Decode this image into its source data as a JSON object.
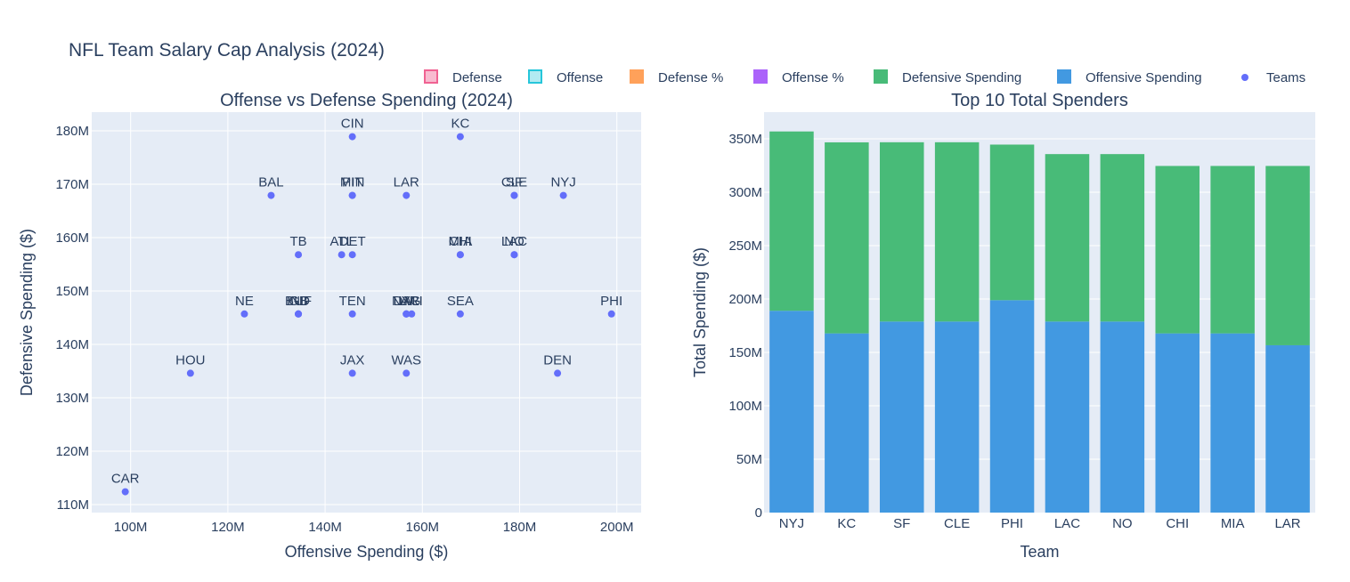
{
  "title": "NFL Team Salary Cap Analysis (2024)",
  "legend": [
    {
      "label": "Defense",
      "kind": "outline-square",
      "color": "#f06292",
      "fill": "#f8bbd0"
    },
    {
      "label": "Offense",
      "kind": "outline-square",
      "color": "#26c6da",
      "fill": "#b2ebf2"
    },
    {
      "label": "Defense %",
      "kind": "square",
      "color": "#ffa15a"
    },
    {
      "label": "Offense %",
      "kind": "square",
      "color": "#ab63fa"
    },
    {
      "label": "Defensive Spending",
      "kind": "square",
      "color": "#48bb78"
    },
    {
      "label": "Offensive Spending",
      "kind": "square",
      "color": "#4299e1"
    },
    {
      "label": "Teams",
      "kind": "dot",
      "color": "#636efa"
    }
  ],
  "colors": {
    "plot_bg": "#e5ecf6",
    "grid": "#ffffff",
    "text": "#2a3f5f",
    "scatter": "#636efa",
    "offense_bar": "#4299e1",
    "defense_bar": "#48bb78"
  },
  "chart_data": [
    {
      "type": "scatter",
      "title": "Offense vs Defense Spending (2024)",
      "xlabel": "Offensive Spending ($)",
      "ylabel": "Defensive Spending ($)",
      "xlim": [
        92,
        205
      ],
      "ylim": [
        108.5,
        183.5
      ],
      "xticks": [
        100,
        120,
        140,
        160,
        180,
        200
      ],
      "yticks": [
        110,
        120,
        130,
        140,
        150,
        160,
        170,
        180
      ],
      "tick_suffix": "M",
      "grid": true,
      "points": [
        {
          "team": "CIN",
          "x": 145.6,
          "y": 178.9
        },
        {
          "team": "KC",
          "x": 167.8,
          "y": 178.9
        },
        {
          "team": "BAL",
          "x": 128.9,
          "y": 167.9
        },
        {
          "team": "MIN",
          "x": 145.6,
          "y": 167.9
        },
        {
          "team": "PIT",
          "x": 145.6,
          "y": 167.9
        },
        {
          "team": "LAR",
          "x": 156.7,
          "y": 167.9
        },
        {
          "team": "CLE",
          "x": 178.9,
          "y": 167.9
        },
        {
          "team": "SF",
          "x": 178.9,
          "y": 167.9
        },
        {
          "team": "NYJ",
          "x": 189.0,
          "y": 167.9
        },
        {
          "team": "TB",
          "x": 134.5,
          "y": 156.8
        },
        {
          "team": "ATL",
          "x": 143.4,
          "y": 156.8
        },
        {
          "team": "DET",
          "x": 145.6,
          "y": 156.8
        },
        {
          "team": "CHI",
          "x": 167.8,
          "y": 156.8
        },
        {
          "team": "MIA",
          "x": 167.8,
          "y": 156.8
        },
        {
          "team": "LAC",
          "x": 178.9,
          "y": 156.8
        },
        {
          "team": "NO",
          "x": 178.9,
          "y": 156.8
        },
        {
          "team": "NE",
          "x": 123.4,
          "y": 145.7
        },
        {
          "team": "BUF",
          "x": 134.5,
          "y": 145.7
        },
        {
          "team": "GB",
          "x": 134.5,
          "y": 145.7
        },
        {
          "team": "IND",
          "x": 134.5,
          "y": 145.7
        },
        {
          "team": "TEN",
          "x": 145.6,
          "y": 145.7
        },
        {
          "team": "DAL",
          "x": 156.7,
          "y": 145.7
        },
        {
          "team": "LV",
          "x": 156.7,
          "y": 145.7
        },
        {
          "team": "NYG",
          "x": 156.7,
          "y": 145.7
        },
        {
          "team": "ARI",
          "x": 157.8,
          "y": 145.7
        },
        {
          "team": "SEA",
          "x": 167.8,
          "y": 145.7
        },
        {
          "team": "PHI",
          "x": 198.9,
          "y": 145.7
        },
        {
          "team": "HOU",
          "x": 112.3,
          "y": 134.6
        },
        {
          "team": "JAX",
          "x": 145.6,
          "y": 134.6
        },
        {
          "team": "WAS",
          "x": 156.7,
          "y": 134.6
        },
        {
          "team": "DEN",
          "x": 187.8,
          "y": 134.6
        },
        {
          "team": "CAR",
          "x": 98.9,
          "y": 112.4
        }
      ]
    },
    {
      "type": "bar",
      "stacked": true,
      "title": "Top 10 Total Spenders",
      "xlabel": "Team",
      "ylabel": "Total Spending ($)",
      "ylim": [
        0,
        375
      ],
      "yticks": [
        0,
        50,
        100,
        150,
        200,
        250,
        300,
        350
      ],
      "tick_suffix": "M",
      "grid": true,
      "categories": [
        "NYJ",
        "KC",
        "SF",
        "CLE",
        "PHI",
        "LAC",
        "NO",
        "CHI",
        "MIA",
        "LAR"
      ],
      "series": [
        {
          "name": "Offensive Spending",
          "color": "#4299e1",
          "values": [
            189.0,
            167.8,
            178.9,
            178.9,
            198.9,
            178.9,
            178.9,
            167.8,
            167.8,
            156.7
          ]
        },
        {
          "name": "Defensive Spending",
          "color": "#48bb78",
          "values": [
            167.9,
            178.9,
            167.9,
            167.9,
            145.7,
            156.8,
            156.8,
            156.8,
            156.8,
            167.9
          ]
        }
      ]
    }
  ]
}
